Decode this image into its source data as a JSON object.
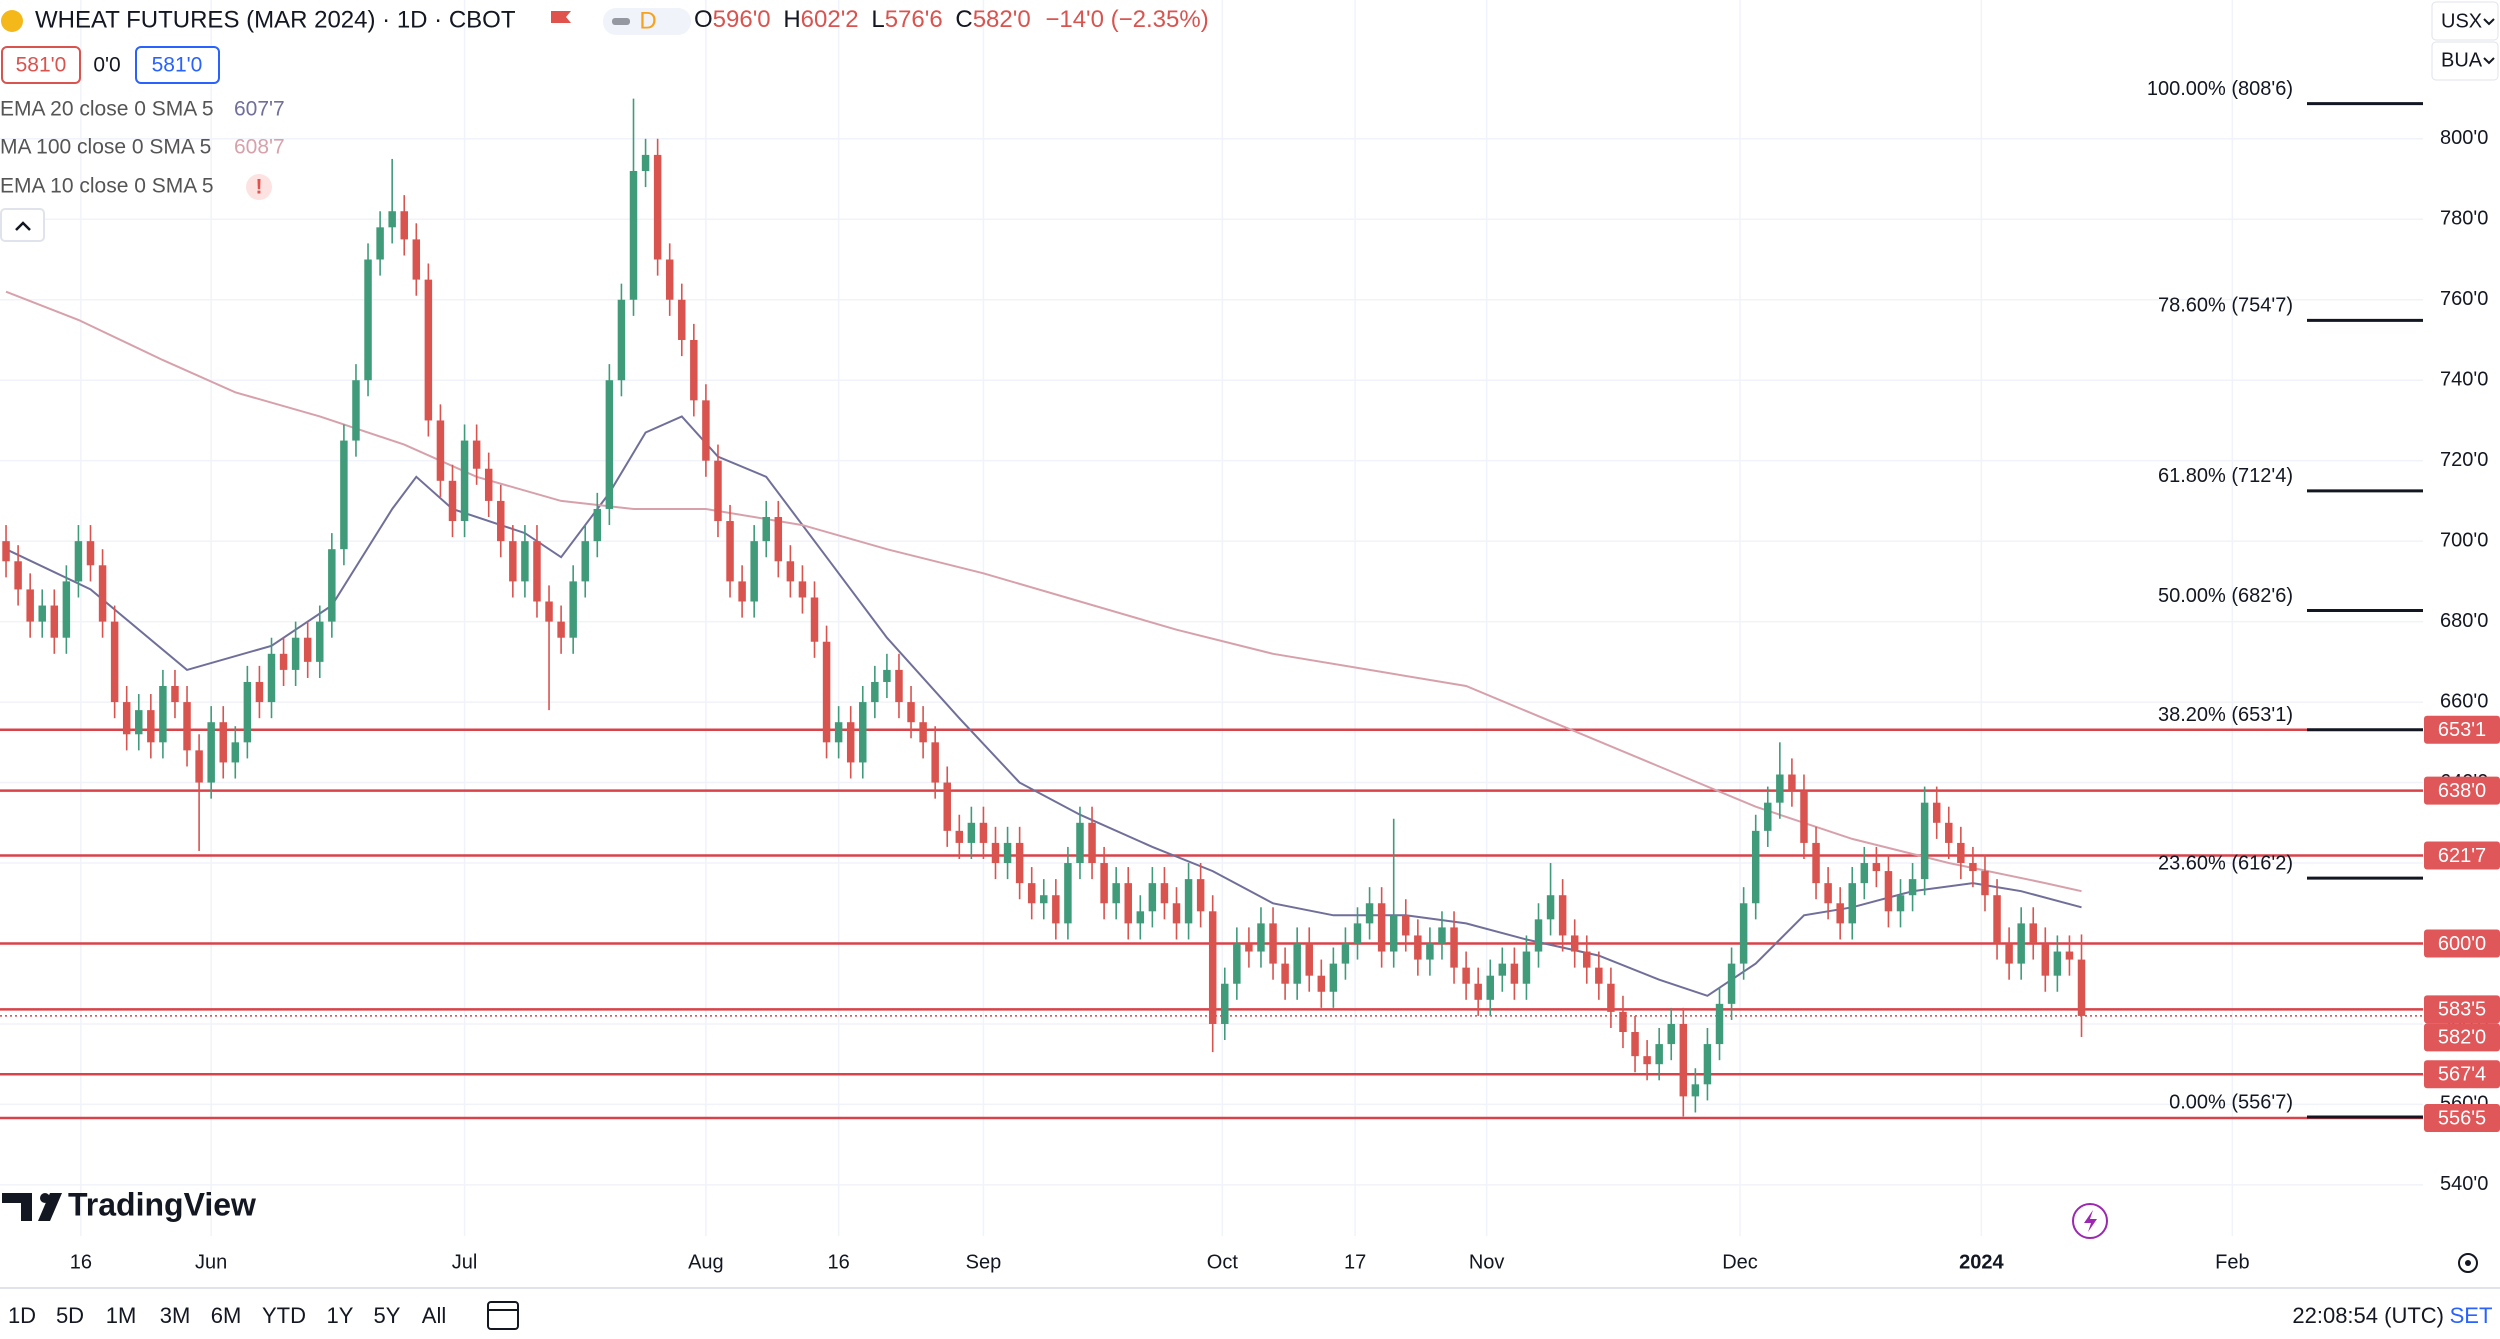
{
  "header": {
    "title": "WHEAT FUTURES (MAR 2024) · 1D · CBOT",
    "badge": "D",
    "ohlc": [
      {
        "label": "O",
        "value": "596'0"
      },
      {
        "label": "H",
        "value": "602'2"
      },
      {
        "label": "L",
        "value": "576'6"
      },
      {
        "label": "C",
        "value": "582'0"
      }
    ],
    "change": "−14'0 (−2.35%)",
    "sell": "581'0",
    "spread": "0'0",
    "buy": "581'0",
    "extra_indicator": "EMA 10 close 0 SMA 5",
    "extra_indicator_status": "!",
    "currency": "USX",
    "unit": "BUA",
    "logo": "TradingView"
  },
  "toolbar": {
    "ranges": [
      "1D",
      "5D",
      "1M",
      "3M",
      "6M",
      "YTD",
      "1Y",
      "5Y",
      "All"
    ],
    "clock": "22:08:54 (UTC)",
    "session": "SET"
  },
  "chart_data": {
    "type": "candlestick",
    "up_color": "#3f9b7a",
    "down_color": "#d9534f",
    "grid": true,
    "xlim": [
      -0.5,
      200.3
    ],
    "ylim": [
      527.3,
      834.5
    ],
    "xticks": [
      {
        "value": 6.2,
        "label": "16"
      },
      {
        "value": 17,
        "label": "Jun"
      },
      {
        "value": 38,
        "label": "Jul"
      },
      {
        "value": 58,
        "label": "Aug"
      },
      {
        "value": 69,
        "label": "16"
      },
      {
        "value": 81,
        "label": "Sep"
      },
      {
        "value": 100.8,
        "label": "Oct"
      },
      {
        "value": 111.8,
        "label": "17"
      },
      {
        "value": 122.7,
        "label": "Nov"
      },
      {
        "value": 143.7,
        "label": "Dec"
      },
      {
        "value": 163.7,
        "label": "2024"
      },
      {
        "value": 184.5,
        "label": "Feb"
      }
    ],
    "yticks": [
      {
        "value": 540,
        "label": "540'0"
      },
      {
        "value": 560,
        "label": "560'0"
      },
      {
        "value": 580,
        "label": "580'0"
      },
      {
        "value": 600,
        "label": "600'0"
      },
      {
        "value": 620,
        "label": "620'0"
      },
      {
        "value": 640,
        "label": "640'0"
      },
      {
        "value": 660,
        "label": "660'0"
      },
      {
        "value": 680,
        "label": "680'0"
      },
      {
        "value": 700,
        "label": "700'0"
      },
      {
        "value": 720,
        "label": "720'0"
      },
      {
        "value": 740,
        "label": "740'0"
      },
      {
        "value": 760,
        "label": "760'0"
      },
      {
        "value": 780,
        "label": "780'0"
      },
      {
        "value": 800,
        "label": "800'0"
      }
    ],
    "open": [
      700,
      695,
      688,
      680,
      684,
      676,
      690,
      700,
      694,
      680,
      660,
      652,
      658,
      650,
      664,
      660,
      648,
      640,
      655,
      645,
      650,
      665,
      660,
      672,
      668,
      676,
      670,
      680,
      698,
      725,
      740,
      770,
      778,
      782,
      775,
      765,
      730,
      715,
      705,
      725,
      718,
      710,
      700,
      690,
      700,
      685,
      680,
      676,
      690,
      700,
      708,
      740,
      760,
      792,
      796,
      770,
      760,
      750,
      735,
      720,
      705,
      690,
      685,
      700,
      706,
      695,
      690,
      686,
      675,
      650,
      655,
      645,
      660,
      665,
      668,
      660,
      655,
      650,
      640,
      628,
      625,
      630,
      625,
      620,
      625,
      615,
      610,
      612,
      605,
      620,
      630,
      620,
      610,
      615,
      605,
      608,
      615,
      610,
      605,
      616,
      608,
      580,
      590,
      600,
      598,
      605,
      595,
      590,
      600,
      592,
      588,
      595,
      600,
      605,
      610,
      598,
      607,
      602,
      596,
      600,
      604,
      594,
      590,
      586,
      592,
      595,
      590,
      598,
      606,
      612,
      602,
      598,
      594,
      590,
      583,
      578,
      572,
      570,
      575,
      580,
      562,
      565,
      575,
      585,
      595,
      610,
      628,
      635,
      642,
      638,
      625,
      615,
      610,
      605,
      615,
      620,
      618,
      608,
      612,
      616,
      635,
      630,
      625,
      620,
      618,
      612,
      600,
      595,
      605,
      600,
      592,
      598,
      596
    ],
    "high": [
      704,
      699,
      692,
      688,
      688,
      694,
      704,
      704,
      698,
      684,
      664,
      662,
      662,
      668,
      668,
      664,
      652,
      659,
      659,
      654,
      669,
      669,
      676,
      676,
      680,
      680,
      684,
      702,
      729,
      744,
      774,
      782,
      795,
      786,
      779,
      769,
      734,
      719,
      729,
      729,
      722,
      714,
      704,
      704,
      704,
      689,
      684,
      694,
      704,
      712,
      744,
      764,
      810,
      800,
      800,
      774,
      764,
      754,
      739,
      724,
      709,
      694,
      704,
      710,
      710,
      699,
      694,
      690,
      679,
      659,
      659,
      664,
      669,
      672,
      672,
      664,
      659,
      654,
      644,
      632,
      634,
      634,
      629,
      629,
      629,
      619,
      616,
      616,
      624,
      634,
      634,
      624,
      619,
      619,
      612,
      619,
      619,
      614,
      620,
      620,
      612,
      594,
      604,
      604,
      609,
      609,
      599,
      604,
      604,
      596,
      599,
      604,
      609,
      614,
      614,
      631,
      611,
      606,
      604,
      608,
      608,
      598,
      594,
      596,
      599,
      599,
      602,
      610,
      620,
      616,
      606,
      602,
      598,
      594,
      587,
      582,
      576,
      579,
      584,
      584,
      569,
      579,
      589,
      599,
      614,
      632,
      639,
      650,
      646,
      642,
      629,
      619,
      614,
      619,
      624,
      624,
      622,
      616,
      620,
      639,
      639,
      634,
      629,
      624,
      622,
      616,
      604,
      609,
      609,
      604,
      602,
      602,
      602.25
    ],
    "low": [
      691,
      684,
      676,
      676,
      672,
      672,
      686,
      690,
      676,
      656,
      648,
      648,
      646,
      646,
      656,
      644,
      623,
      636,
      641,
      641,
      646,
      656,
      656,
      664,
      664,
      666,
      666,
      676,
      694,
      721,
      736,
      766,
      774,
      771,
      761,
      726,
      711,
      701,
      701,
      714,
      706,
      696,
      686,
      686,
      681,
      658,
      672,
      672,
      686,
      696,
      704,
      736,
      756,
      788,
      766,
      756,
      746,
      731,
      716,
      701,
      686,
      681,
      681,
      696,
      691,
      686,
      682,
      671,
      646,
      646,
      641,
      641,
      656,
      661,
      656,
      651,
      646,
      636,
      624,
      621,
      621,
      621,
      616,
      616,
      611,
      606,
      606,
      601,
      601,
      616,
      616,
      606,
      606,
      601,
      601,
      604,
      606,
      601,
      601,
      604,
      573,
      576,
      586,
      594,
      594,
      591,
      586,
      586,
      588,
      584,
      584,
      591,
      596,
      601,
      594,
      594,
      598,
      592,
      592,
      596,
      590,
      586,
      582,
      582,
      588,
      586,
      586,
      594,
      602,
      598,
      594,
      590,
      586,
      579,
      574,
      568,
      566,
      566,
      571,
      557,
      558,
      561,
      571,
      581,
      591,
      606,
      624,
      631,
      634,
      621,
      611,
      606,
      601,
      601,
      611,
      614,
      604,
      604,
      608,
      612,
      626,
      621,
      616,
      614,
      608,
      596,
      591,
      591,
      596,
      588,
      588,
      592,
      576.75
    ],
    "close": [
      695,
      688,
      680,
      684,
      676,
      690,
      700,
      694,
      680,
      660,
      652,
      658,
      650,
      664,
      660,
      648,
      640,
      655,
      645,
      650,
      665,
      660,
      672,
      668,
      676,
      670,
      680,
      698,
      725,
      740,
      770,
      778,
      782,
      775,
      765,
      730,
      715,
      705,
      725,
      718,
      710,
      700,
      690,
      700,
      685,
      680,
      676,
      690,
      700,
      708,
      740,
      760,
      792,
      796,
      770,
      760,
      750,
      735,
      720,
      705,
      690,
      685,
      700,
      706,
      695,
      690,
      686,
      675,
      650,
      655,
      645,
      660,
      665,
      668,
      660,
      655,
      650,
      640,
      628,
      625,
      630,
      625,
      620,
      625,
      615,
      610,
      612,
      605,
      620,
      630,
      620,
      610,
      615,
      605,
      608,
      615,
      610,
      605,
      616,
      608,
      580,
      590,
      600,
      598,
      605,
      595,
      590,
      600,
      592,
      588,
      595,
      600,
      605,
      610,
      598,
      607,
      602,
      596,
      600,
      604,
      594,
      590,
      586,
      592,
      595,
      590,
      598,
      606,
      612,
      602,
      598,
      594,
      590,
      583,
      578,
      572,
      570,
      575,
      580,
      562,
      565,
      575,
      585,
      595,
      610,
      628,
      635,
      642,
      638,
      625,
      615,
      610,
      605,
      615,
      620,
      618,
      608,
      612,
      616,
      635,
      630,
      625,
      620,
      618,
      612,
      600,
      595,
      605,
      600,
      592,
      598,
      596,
      582
    ],
    "series": [
      {
        "name": "EMA 20 close 0 SMA 5",
        "color": "#6f6f9a",
        "last_label": "607'7",
        "x": [
          0,
          7,
          15,
          22,
          27,
          32,
          34,
          37,
          43,
          46,
          50,
          53,
          56,
          59,
          63,
          68,
          73,
          79,
          84,
          89,
          95,
          100,
          105,
          110,
          116,
          121,
          126,
          132,
          137,
          141,
          145,
          149,
          153,
          158,
          163,
          167,
          172
        ],
        "values": [
          698,
          688,
          668,
          674,
          684,
          708,
          716,
          708,
          702,
          696,
          712,
          727,
          731,
          721,
          716,
          696,
          676,
          656,
          640,
          632,
          624,
          618,
          610,
          607,
          607,
          605,
          601,
          597,
          591,
          587,
          595,
          607,
          609,
          613,
          615,
          613,
          609
        ]
      },
      {
        "name": "MA 100 close 0 SMA 5",
        "color": "#d7a1ab",
        "last_label": "608'7",
        "x": [
          0,
          6,
          13,
          19,
          26,
          33,
          39,
          46,
          52,
          58,
          66,
          73,
          81,
          89,
          97,
          105,
          113,
          121,
          129,
          137,
          145,
          153,
          161,
          169,
          172
        ],
        "values": [
          762,
          755,
          745,
          737,
          731,
          724,
          716,
          710,
          708,
          708,
          704,
          698,
          692,
          685,
          678,
          672,
          668,
          664,
          654,
          644,
          634,
          626,
          620,
          615,
          613
        ]
      }
    ],
    "level_color": "#d8434a",
    "levels": [
      {
        "value": 653.125,
        "label": "653'1"
      },
      {
        "value": 638,
        "label": "638'0"
      },
      {
        "value": 621.875,
        "label": "621'7"
      },
      {
        "value": 600,
        "label": "600'0"
      },
      {
        "value": 583.625,
        "label": "583'5"
      },
      {
        "value": 567.5,
        "label": "567'4"
      },
      {
        "value": 556.625,
        "label": "556'5"
      }
    ],
    "last_price": {
      "value": 582,
      "label": "582'0"
    },
    "fib_levels": [
      {
        "value": 808.75,
        "label": "100.00% (808'6)"
      },
      {
        "value": 754.875,
        "label": "78.60% (754'7)"
      },
      {
        "value": 712.5,
        "label": "61.80% (712'4)"
      },
      {
        "value": 682.75,
        "label": "50.00% (682'6)"
      },
      {
        "value": 653.125,
        "label": "38.20% (653'1)"
      },
      {
        "value": 616.25,
        "label": "23.60% (616'2)"
      },
      {
        "value": 556.875,
        "label": "0.00% (556'7)"
      }
    ]
  }
}
